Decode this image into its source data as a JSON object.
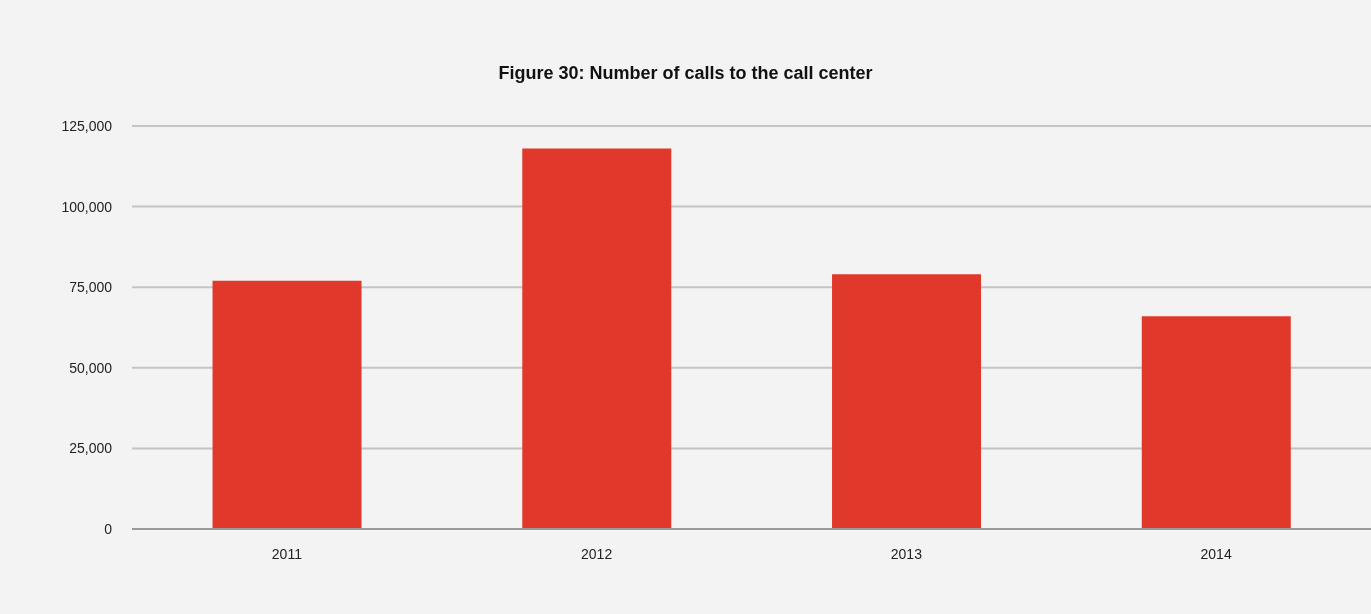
{
  "chart_data": {
    "type": "bar",
    "title": "Figure 30: Number of calls to the call center",
    "categories": [
      "2011",
      "2012",
      "2013",
      "2014"
    ],
    "values": [
      77000,
      118000,
      79000,
      66000
    ],
    "color": "#e0392b",
    "ylim": [
      0,
      125000
    ],
    "yticks": [
      {
        "value": 0,
        "label": "0"
      },
      {
        "value": 25000,
        "label": "25,000"
      },
      {
        "value": 50000,
        "label": "50,000"
      },
      {
        "value": 75000,
        "label": "75,000"
      },
      {
        "value": 100000,
        "label": "100,000"
      },
      {
        "value": 125000,
        "label": "125,000"
      }
    ],
    "grid": "y"
  }
}
